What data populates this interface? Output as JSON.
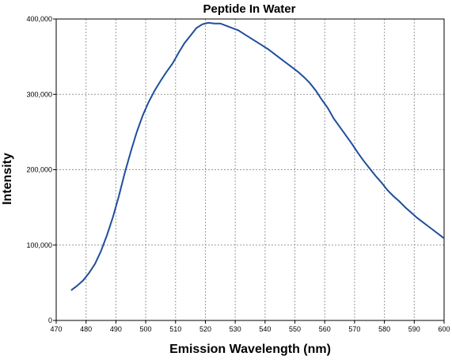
{
  "chart_data": {
    "type": "line",
    "title": "Peptide In Water",
    "xlabel": "Emission Wavelength (nm)",
    "ylabel": "Intensity",
    "xlim": [
      470,
      600
    ],
    "ylim": [
      0,
      400000
    ],
    "xticks": [
      470,
      480,
      490,
      500,
      510,
      520,
      530,
      540,
      550,
      560,
      570,
      580,
      590,
      600
    ],
    "xtick_labels": [
      "470",
      "480",
      "490",
      "500",
      "510",
      "520",
      "530",
      "540",
      "550",
      "560",
      "570",
      "580",
      "590",
      "600"
    ],
    "yticks": [
      0,
      100000,
      200000,
      300000,
      400000
    ],
    "ytick_labels": [
      "0",
      "100,000",
      "200,000",
      "300,000",
      "400,000"
    ],
    "grid": true,
    "line_color": "#1f4e9c",
    "series": [
      {
        "x": [
          475,
          477,
          479,
          481,
          483,
          485,
          487,
          489,
          491,
          493,
          495,
          497,
          499,
          501,
          503,
          505,
          507,
          509,
          511,
          513,
          515,
          517,
          519,
          521,
          523,
          525,
          527,
          529,
          531,
          533,
          535,
          537,
          539,
          541,
          543,
          545,
          547,
          549,
          551,
          553,
          555,
          557,
          559,
          561,
          563,
          565,
          567,
          569,
          571,
          573,
          575,
          577,
          579,
          581,
          583,
          585,
          587,
          589,
          591,
          593,
          595,
          597,
          599,
          600
        ],
        "values": [
          40000,
          46000,
          53000,
          63000,
          75000,
          92000,
          113000,
          137000,
          165000,
          196000,
          224000,
          250000,
          272000,
          290000,
          305000,
          318000,
          330000,
          341000,
          355000,
          368000,
          378000,
          388000,
          393000,
          395000,
          394000,
          394000,
          391000,
          388000,
          385000,
          380000,
          375000,
          370000,
          365000,
          360000,
          354000,
          348000,
          342000,
          336000,
          330000,
          323000,
          315000,
          305000,
          293000,
          282000,
          268000,
          257000,
          246000,
          235000,
          223000,
          212000,
          202000,
          192000,
          183000,
          173000,
          165000,
          158000,
          150000,
          143000,
          136000,
          130000,
          124000,
          118000,
          112000,
          109000
        ]
      }
    ]
  }
}
